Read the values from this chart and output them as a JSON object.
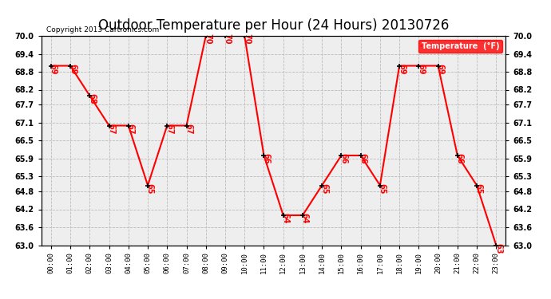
{
  "title": "Outdoor Temperature per Hour (24 Hours) 20130726",
  "copyright": "Copyright 2013 Cartronics.com",
  "legend_label": "Temperature  (°F)",
  "hours": [
    0,
    1,
    2,
    3,
    4,
    5,
    6,
    7,
    8,
    9,
    10,
    11,
    12,
    13,
    14,
    15,
    16,
    17,
    18,
    19,
    20,
    21,
    22,
    23
  ],
  "temps": [
    69,
    69,
    68,
    67,
    67,
    65,
    67,
    67,
    70,
    70,
    70,
    66,
    64,
    64,
    65,
    66,
    66,
    65,
    69,
    69,
    69,
    66,
    65,
    63
  ],
  "ylim": [
    63.0,
    70.0
  ],
  "yticks": [
    63.0,
    63.6,
    64.2,
    64.8,
    65.3,
    65.9,
    66.5,
    67.1,
    67.7,
    68.2,
    68.8,
    69.4,
    70.0
  ],
  "line_color": "#FF0000",
  "marker_color": "#000000",
  "grid_color": "#BBBBBB",
  "bg_color": "#FFFFFF",
  "plot_bg_color": "#EEEEEE",
  "title_fontsize": 12,
  "label_fontsize": 7,
  "copyright_fontsize": 6.5,
  "legend_bg_color": "#FF0000",
  "legend_text_color": "#FFFFFF"
}
